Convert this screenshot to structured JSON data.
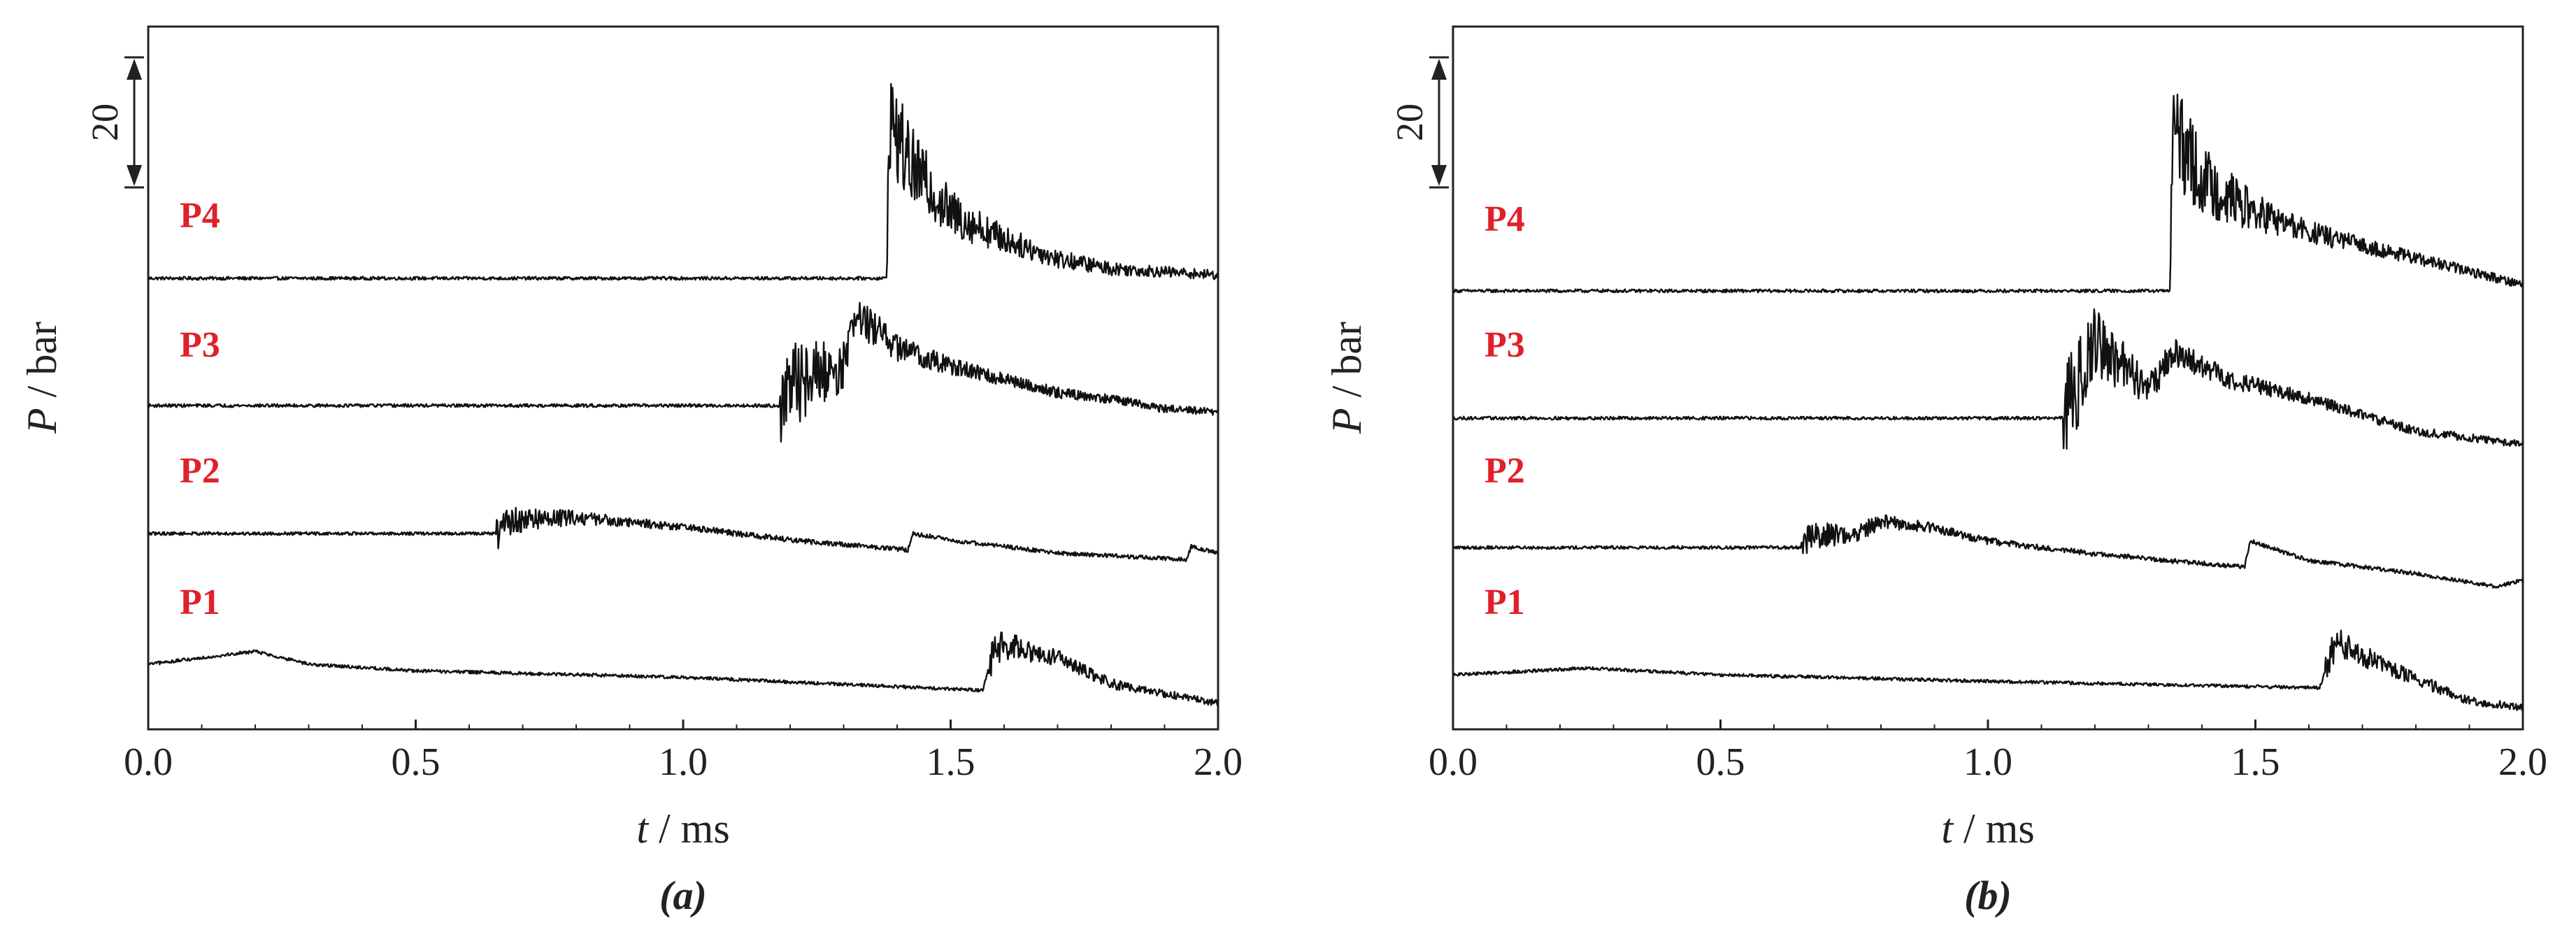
{
  "figure": {
    "panel_a_label": "(a)",
    "panel_b_label": "(b)"
  },
  "colors": {
    "trace": "#111111",
    "series_label": "#e0202a",
    "axes": "#222222"
  },
  "chart_data": [
    {
      "type": "line",
      "panel": "(a)",
      "xlabel_italic": "t",
      "xlabel_unit": " / ms",
      "ylabel_italic": "P",
      "ylabel_unit": " / bar",
      "xlim": [
        0.0,
        2.0
      ],
      "x_ticks": [
        "0.0",
        "0.5",
        "1.0",
        "1.5",
        "2.0"
      ],
      "scale_bar": {
        "label": "20",
        "bar": 20
      },
      "series": [
        {
          "name": "P4",
          "baseline_bar": 0,
          "arrival_ms": 1.38,
          "shock_jump_bar": 25,
          "noise": "high-after-arrival",
          "points": [
            [
              0.0,
              0
            ],
            [
              1.38,
              0
            ],
            [
              1.385,
              25
            ],
            [
              1.42,
              18
            ],
            [
              1.5,
              10
            ],
            [
              1.6,
              6
            ],
            [
              1.7,
              3
            ],
            [
              1.8,
              1.5
            ],
            [
              1.9,
              1
            ],
            [
              2.0,
              0.5
            ]
          ]
        },
        {
          "name": "P3",
          "baseline_bar": 0,
          "arrival_ms": 1.18,
          "shock_jump_bar": 5,
          "noise": "high-1.3-1.6",
          "points": [
            [
              0.0,
              0
            ],
            [
              1.18,
              0
            ],
            [
              1.22,
              4
            ],
            [
              1.3,
              6
            ],
            [
              1.32,
              14
            ],
            [
              1.4,
              9
            ],
            [
              1.5,
              6
            ],
            [
              1.6,
              4
            ],
            [
              1.7,
              2
            ],
            [
              1.8,
              1
            ],
            [
              1.9,
              -0.5
            ],
            [
              2.0,
              -1
            ]
          ]
        },
        {
          "name": "P2",
          "baseline_bar": 0,
          "arrival_ms": 0.65,
          "shock_jump_bar": 2,
          "points": [
            [
              0.0,
              0
            ],
            [
              0.65,
              0
            ],
            [
              0.68,
              2
            ],
            [
              0.8,
              2.5
            ],
            [
              1.0,
              1
            ],
            [
              1.2,
              -1
            ],
            [
              1.42,
              -2.5
            ],
            [
              1.43,
              0
            ],
            [
              1.5,
              -1
            ],
            [
              1.7,
              -3
            ],
            [
              1.94,
              -4
            ],
            [
              1.95,
              -2
            ],
            [
              2.0,
              -3
            ]
          ]
        },
        {
          "name": "P1",
          "baseline_bar": 0,
          "arrival_ms": 1.57,
          "shock_jump_bar": 5,
          "points": [
            [
              0.0,
              0
            ],
            [
              0.2,
              2
            ],
            [
              0.3,
              0
            ],
            [
              0.5,
              -1
            ],
            [
              1.0,
              -2
            ],
            [
              1.56,
              -4
            ],
            [
              1.58,
              2
            ],
            [
              1.6,
              3
            ],
            [
              1.7,
              1
            ],
            [
              1.8,
              -3
            ],
            [
              2.0,
              -6
            ]
          ]
        }
      ]
    },
    {
      "type": "line",
      "panel": "(b)",
      "xlabel_italic": "t",
      "xlabel_unit": " / ms",
      "ylabel_italic": "P",
      "ylabel_unit": " / bar",
      "xlim": [
        0.0,
        2.0
      ],
      "x_ticks": [
        "0.0",
        "0.5",
        "1.0",
        "1.5",
        "2.0"
      ],
      "scale_bar": {
        "label": "20",
        "bar": 20
      },
      "series": [
        {
          "name": "P4",
          "baseline_bar": 0,
          "arrival_ms": 1.34,
          "shock_jump_bar": 25,
          "noise": "high-after-arrival",
          "points": [
            [
              0.0,
              0
            ],
            [
              1.34,
              0
            ],
            [
              1.345,
              25
            ],
            [
              1.4,
              17
            ],
            [
              1.5,
              12
            ],
            [
              1.6,
              9
            ],
            [
              1.7,
              7
            ],
            [
              1.8,
              5
            ],
            [
              1.9,
              3
            ],
            [
              2.0,
              1
            ]
          ]
        },
        {
          "name": "P3",
          "baseline_bar": 0,
          "arrival_ms": 1.14,
          "shock_jump_bar": 6,
          "noise": "high-1.15-1.45",
          "points": [
            [
              0.0,
              0
            ],
            [
              1.14,
              0
            ],
            [
              1.17,
              6
            ],
            [
              1.2,
              12
            ],
            [
              1.25,
              8
            ],
            [
              1.3,
              5
            ],
            [
              1.35,
              10
            ],
            [
              1.45,
              6
            ],
            [
              1.6,
              3
            ],
            [
              1.8,
              -2
            ],
            [
              2.0,
              -4
            ]
          ]
        },
        {
          "name": "P2",
          "baseline_bar": 0,
          "arrival_ms": 0.65,
          "shock_jump_bar": 2,
          "points": [
            [
              0.0,
              0
            ],
            [
              0.65,
              0
            ],
            [
              0.67,
              2
            ],
            [
              0.75,
              2
            ],
            [
              0.8,
              4
            ],
            [
              0.9,
              3
            ],
            [
              1.0,
              1
            ],
            [
              1.2,
              -1
            ],
            [
              1.48,
              -3
            ],
            [
              1.49,
              1
            ],
            [
              1.6,
              -2
            ],
            [
              1.8,
              -4
            ],
            [
              1.95,
              -6
            ],
            [
              2.0,
              -5
            ]
          ]
        },
        {
          "name": "P1",
          "baseline_bar": 0,
          "arrival_ms": 1.63,
          "shock_jump_bar": 5,
          "points": [
            [
              0.0,
              0
            ],
            [
              0.25,
              1
            ],
            [
              0.5,
              0
            ],
            [
              1.0,
              -1
            ],
            [
              1.62,
              -2
            ],
            [
              1.65,
              5
            ],
            [
              1.75,
              1
            ],
            [
              1.9,
              -4
            ],
            [
              2.0,
              -5
            ]
          ]
        }
      ]
    }
  ]
}
